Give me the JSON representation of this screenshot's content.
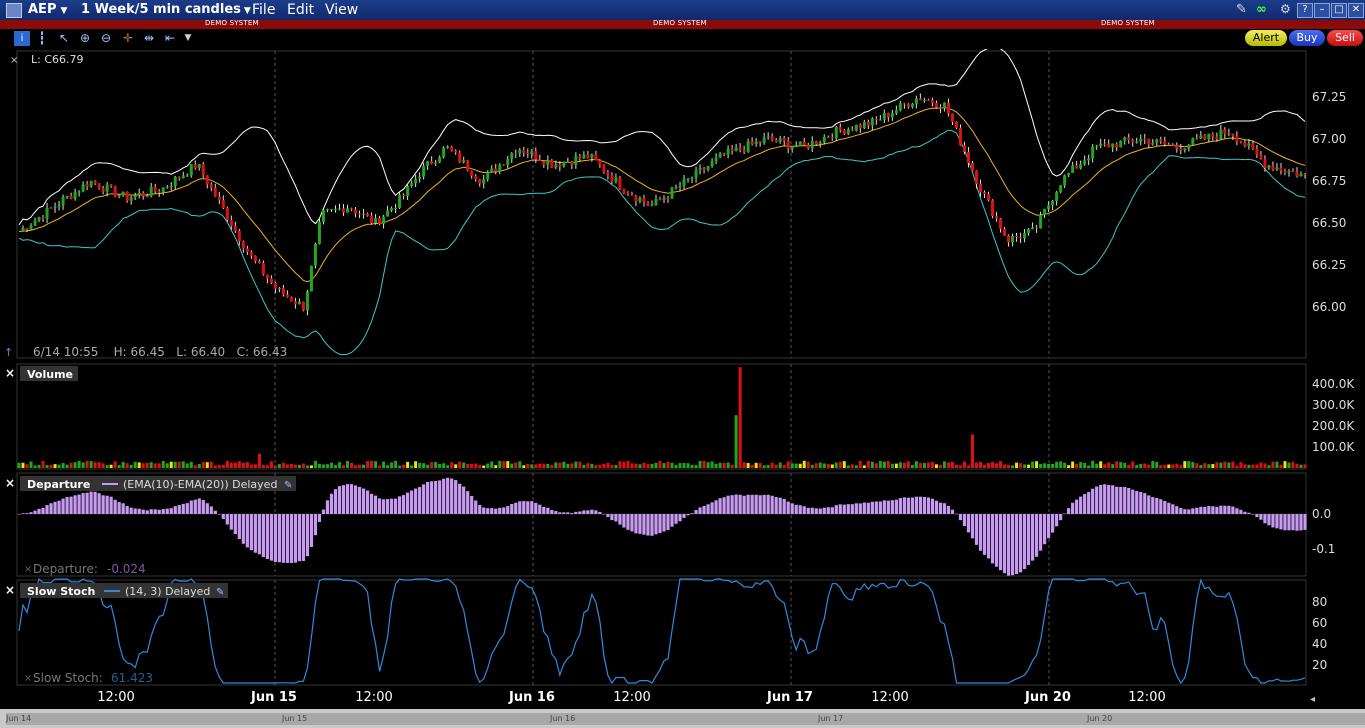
{
  "window": {
    "symbol": "AEP",
    "period": "1 Week/5 min candles",
    "menus": [
      {
        "label": "File"
      },
      {
        "label": "Edit"
      },
      {
        "label": "View"
      }
    ],
    "demo_label": "DEMO SYSTEM"
  },
  "toolbar": {
    "alert": "Alert",
    "buy": "Buy",
    "sell": "Sell"
  },
  "price_panel": {
    "last_label": "L: C66.79",
    "hover_info": "6/14 10:55    H: 66.45   L: 66.40   C: 66.43",
    "y_ticks": [
      "67.25",
      "67.00",
      "66.75",
      "66.50",
      "66.25",
      "66.00"
    ]
  },
  "volume_panel": {
    "title": "Volume",
    "y_ticks": [
      "400.0K",
      "300.0K",
      "200.0K",
      "100.0K"
    ]
  },
  "departure_panel": {
    "title": "Departure",
    "legend": "(EMA(10)-EMA(20)) Delayed",
    "readout_label": "Departure:",
    "readout_value": "-0.024",
    "y_ticks": [
      "0.0",
      "-0.1"
    ]
  },
  "stoch_panel": {
    "title": "Slow Stoch",
    "legend": "(14, 3) Delayed",
    "readout_label": "Slow Stoch:",
    "readout_value": "61.423",
    "y_ticks": [
      "80",
      "60",
      "40",
      "20"
    ]
  },
  "x_axis": {
    "labels": [
      "12:00",
      "Jun 15",
      "12:00",
      "Jun 16",
      "12:00",
      "Jun 17",
      "12:00",
      "Jun 20",
      "12:00"
    ],
    "navigator_labels": [
      "Jun 14",
      "Jun 15",
      "Jun 16",
      "Jun 17",
      "Jun 20"
    ]
  },
  "colors": {
    "up": "#1fa71f",
    "down": "#e01010",
    "departure": "#c89bf2",
    "stoch": "#2f8ae0",
    "band": "#ffffff",
    "lower_band": "#3ec7c7",
    "ema": "#f0b020"
  }
}
